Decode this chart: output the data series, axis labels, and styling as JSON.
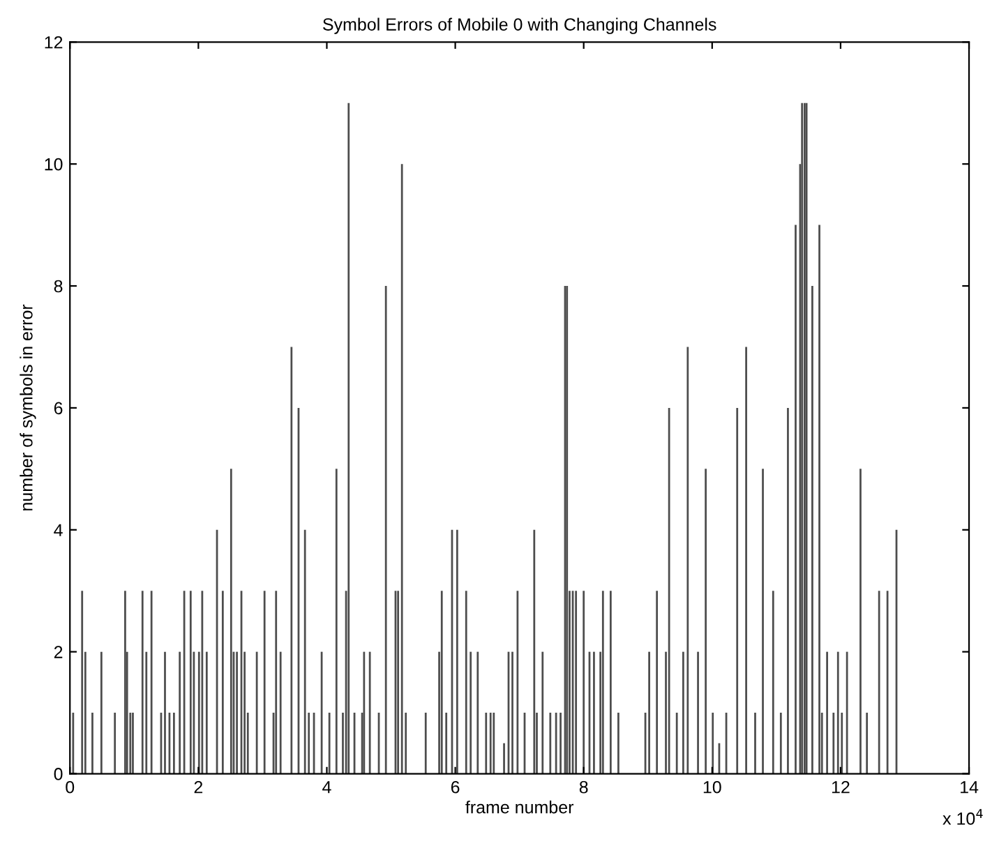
{
  "chart_data": {
    "type": "bar",
    "title": "Symbol Errors of Mobile 0 with Changing Channels",
    "xlabel": "frame number",
    "ylabel": "number of symbols in error",
    "x": [
      0.05,
      0.19,
      0.24,
      0.35,
      0.49,
      0.7,
      0.86,
      0.89,
      0.94,
      0.98,
      1.13,
      1.19,
      1.27,
      1.42,
      1.48,
      1.55,
      1.62,
      1.71,
      1.78,
      1.88,
      1.93,
      2.01,
      2.06,
      2.13,
      2.29,
      2.38,
      2.51,
      2.55,
      2.6,
      2.67,
      2.72,
      2.77,
      2.91,
      3.03,
      3.17,
      3.21,
      3.28,
      3.45,
      3.56,
      3.66,
      3.72,
      3.8,
      3.92,
      4.04,
      4.15,
      4.25,
      4.3,
      4.34,
      4.43,
      4.55,
      4.58,
      4.67,
      4.81,
      4.92,
      5.07,
      5.11,
      5.17,
      5.23,
      5.54,
      5.75,
      5.79,
      5.86,
      5.95,
      6.03,
      6.17,
      6.24,
      6.35,
      6.48,
      6.55,
      6.6,
      6.76,
      6.83,
      6.89,
      6.97,
      7.08,
      7.23,
      7.27,
      7.36,
      7.48,
      7.57,
      7.64,
      7.71,
      7.74,
      7.78,
      7.83,
      7.88,
      8.0,
      8.09,
      8.16,
      8.26,
      8.3,
      8.42,
      8.54,
      8.96,
      9.02,
      9.14,
      9.28,
      9.33,
      9.45,
      9.55,
      9.62,
      9.78,
      9.9,
      10.01,
      10.11,
      10.22,
      10.39,
      10.53,
      10.67,
      10.79,
      10.95,
      11.07,
      11.18,
      11.3,
      11.37,
      11.4,
      11.44,
      11.47,
      11.56,
      11.67,
      11.71,
      11.79,
      11.89,
      11.96,
      12.02,
      12.1,
      12.31,
      12.41,
      12.6,
      12.73,
      12.87
    ],
    "values": [
      1,
      3,
      2,
      1,
      2,
      1,
      3,
      2,
      1,
      1,
      3,
      2,
      3,
      1,
      2,
      1,
      1,
      2,
      3,
      3,
      2,
      2,
      3,
      2,
      4,
      3,
      5,
      2,
      2,
      3,
      2,
      1,
      2,
      3,
      1,
      3,
      2,
      7,
      6,
      4,
      1,
      1,
      2,
      1,
      5,
      1,
      3,
      11,
      1,
      1,
      2,
      2,
      1,
      8,
      3,
      3,
      10,
      1,
      1,
      2,
      3,
      1,
      4,
      4,
      3,
      2,
      2,
      1,
      1,
      1,
      0.5,
      2,
      2,
      3,
      1,
      4,
      1,
      2,
      1,
      1,
      1,
      8,
      8,
      3,
      3,
      3,
      3,
      2,
      2,
      2,
      3,
      3,
      1,
      1,
      2,
      3,
      2,
      6,
      1,
      2,
      7,
      2,
      5,
      1,
      0.5,
      1,
      6,
      7,
      1,
      5,
      3,
      1,
      6,
      9,
      10,
      11,
      11,
      11,
      8,
      9,
      1,
      2,
      1,
      2,
      1,
      2,
      5,
      1,
      3,
      3,
      4
    ],
    "color": "#4d4d4d",
    "xlim": [
      0,
      14
    ],
    "xticks": [
      0,
      2,
      4,
      6,
      8,
      10,
      12,
      14
    ],
    "ylim": [
      0,
      12
    ],
    "yticks": [
      0,
      2,
      4,
      6,
      8,
      10,
      12
    ],
    "grid": false,
    "annotations": [
      "x 10$^{4}$"
    ]
  }
}
